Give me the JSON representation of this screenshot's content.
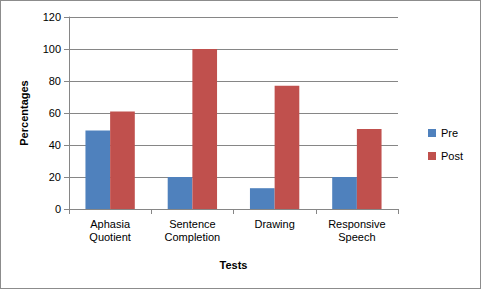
{
  "chart_data": {
    "type": "bar",
    "x_label": "Tests",
    "y_label": "Percentages",
    "categories": [
      "Aphasia Quotient",
      "Sentence Completion",
      "Drawing",
      "Responsive Speech"
    ],
    "series": [
      {
        "name": "Pre",
        "color": "#4f81bd",
        "values": [
          49,
          20,
          13,
          20
        ]
      },
      {
        "name": "Post",
        "color": "#c0504d",
        "values": [
          61,
          100,
          77,
          50
        ]
      }
    ],
    "ylim": [
      0,
      120
    ],
    "yticks": [
      0,
      20,
      40,
      60,
      80,
      100,
      120
    ],
    "grid": true,
    "legend": "right"
  }
}
